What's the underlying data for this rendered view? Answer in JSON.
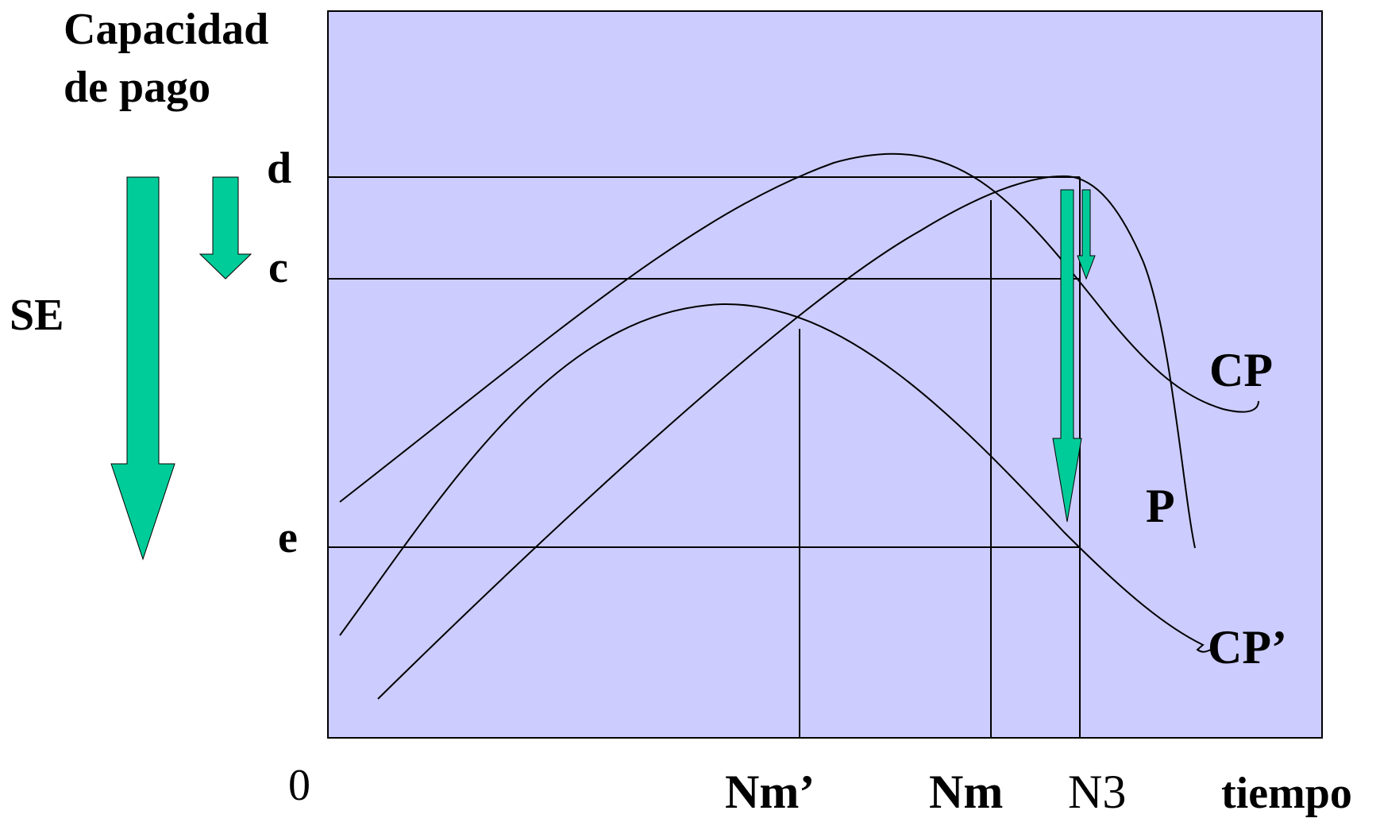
{
  "title_line1": "Capacidad",
  "title_line2": "de pago",
  "se_label": "SE",
  "level_d": "d",
  "level_c": "c",
  "level_e": "e",
  "origin_label": "0",
  "curve_cp_label": "CP",
  "curve_p_label": "P",
  "curve_cp_prime_label": "CP’",
  "x_nm_prime": "Nm’",
  "x_nm": "Nm",
  "x_n3": "N3",
  "x_axis_label": "tiempo",
  "colors": {
    "plot_background": "#ccccff",
    "arrow_fill": "#00cc99",
    "line": "#000000"
  }
}
